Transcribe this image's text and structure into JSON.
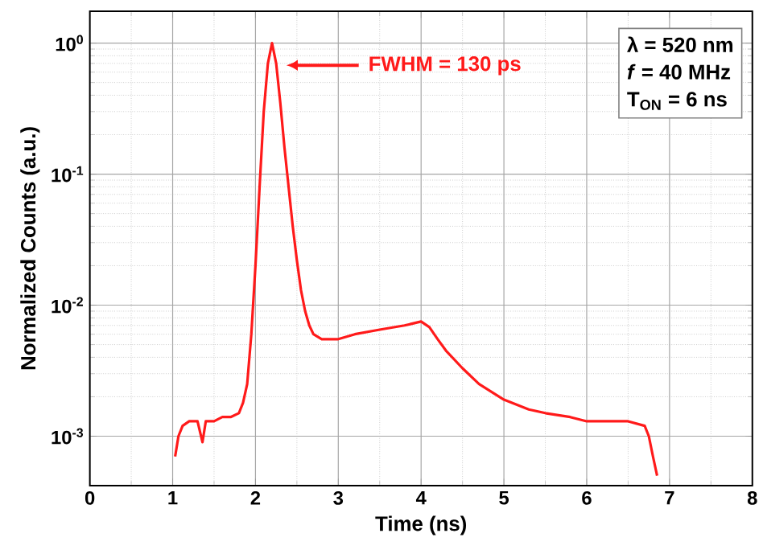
{
  "chart_data": {
    "type": "line",
    "xlabel": "Time (ns)",
    "ylabel": "Normalized Counts (a.u.)",
    "log": "y",
    "grid": true,
    "marker": "none",
    "line_style": "solid",
    "xlim": [
      0,
      8
    ],
    "xticks": [
      0,
      1,
      2,
      3,
      4,
      5,
      6,
      7,
      8
    ],
    "ylim": [
      0.00042,
      1.75
    ],
    "yticks": [
      {
        "value": 0.001,
        "label": "10$^{-3}$"
      },
      {
        "value": 0.01,
        "label": "10$^{-2}$"
      },
      {
        "value": 0.1,
        "label": "10$^{-1}$"
      },
      {
        "value": 1,
        "label": "10$^{0}$"
      }
    ],
    "series": [
      {
        "color": "#ff1a1a",
        "x": [
          1.03,
          1.07,
          1.12,
          1.2,
          1.3,
          1.36,
          1.4,
          1.5,
          1.6,
          1.7,
          1.8,
          1.85,
          1.9,
          1.95,
          2.0,
          2.05,
          2.1,
          2.15,
          2.2,
          2.25,
          2.3,
          2.35,
          2.4,
          2.45,
          2.5,
          2.55,
          2.6,
          2.65,
          2.7,
          2.8,
          3.0,
          3.2,
          3.5,
          3.8,
          4.0,
          4.1,
          4.2,
          4.3,
          4.5,
          4.7,
          5.0,
          5.3,
          5.5,
          5.8,
          6.0,
          6.2,
          6.5,
          6.7,
          6.75,
          6.8,
          6.85
        ],
        "values": [
          0.0007,
          0.001,
          0.0012,
          0.0013,
          0.0013,
          0.0009,
          0.0013,
          0.0013,
          0.0014,
          0.0014,
          0.0015,
          0.0018,
          0.0025,
          0.006,
          0.02,
          0.08,
          0.3,
          0.7,
          1.0,
          0.7,
          0.35,
          0.16,
          0.08,
          0.04,
          0.022,
          0.013,
          0.009,
          0.007,
          0.006,
          0.0055,
          0.0055,
          0.006,
          0.0065,
          0.007,
          0.0075,
          0.0068,
          0.0055,
          0.0045,
          0.0033,
          0.0025,
          0.0019,
          0.0016,
          0.0015,
          0.0014,
          0.0013,
          0.0013,
          0.0013,
          0.0012,
          0.001,
          0.0007,
          0.0005
        ]
      }
    ],
    "annotations": [
      "FWHM = 130 ps",
      "λ = 520 nm",
      "*f* = 40 MHz",
      "T$_{ON}$ = 6 ns"
    ]
  }
}
